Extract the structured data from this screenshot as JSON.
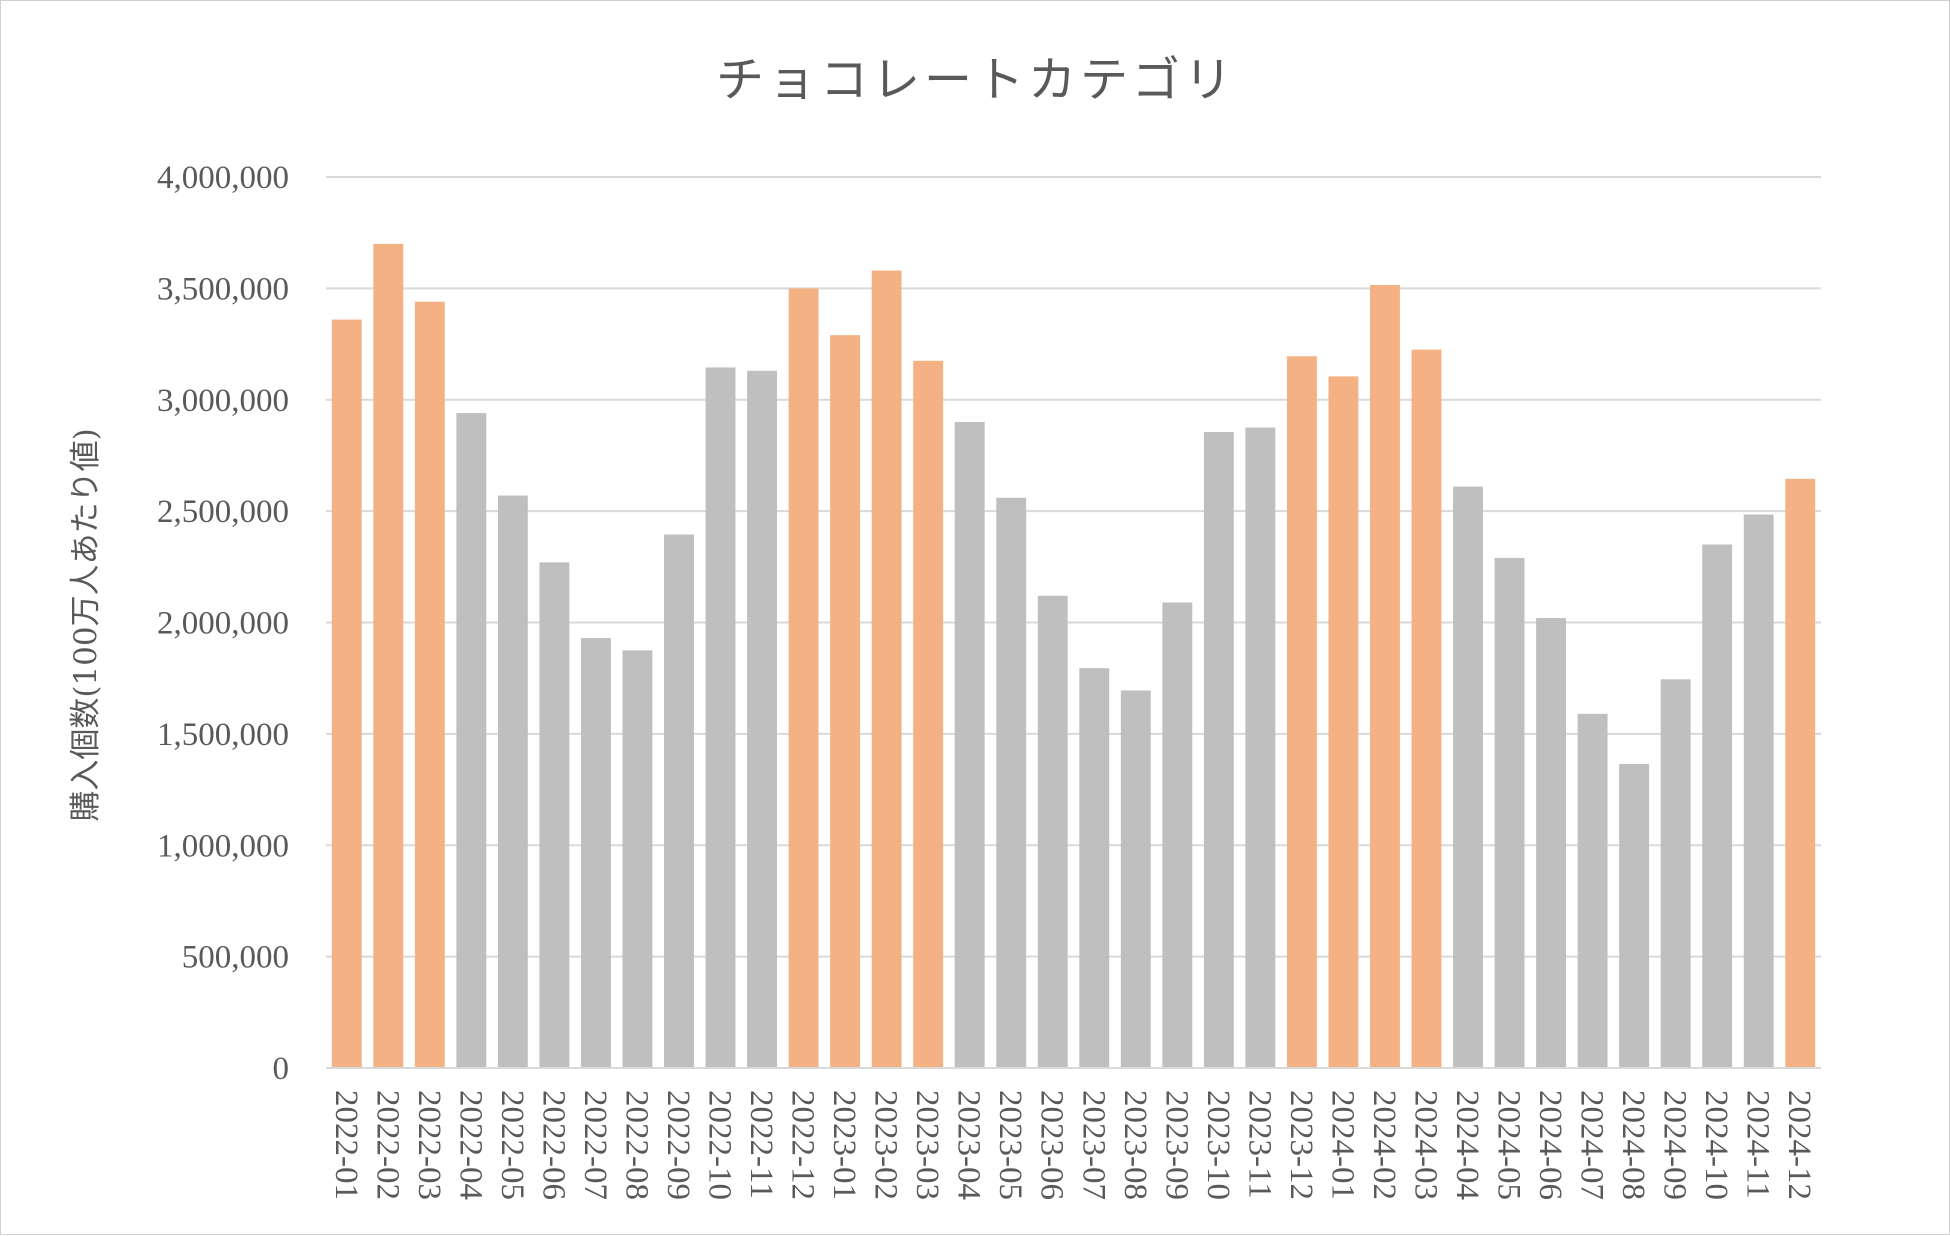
{
  "chart_data": {
    "type": "bar",
    "title": "チョコレートカテゴリ",
    "xlabel": "",
    "ylabel": "購入個数(100万人あたり値)",
    "ylim": [
      0,
      4000000
    ],
    "yticks": [
      0,
      500000,
      1000000,
      1500000,
      2000000,
      2500000,
      3000000,
      3500000,
      4000000
    ],
    "ytick_labels": [
      "0",
      "500,000",
      "1,000,000",
      "1,500,000",
      "2,000,000",
      "2,500,000",
      "3,000,000",
      "3,500,000",
      "4,000,000"
    ],
    "grid": true,
    "legend": "none",
    "categories": [
      "2022-01",
      "2022-02",
      "2022-03",
      "2022-04",
      "2022-05",
      "2022-06",
      "2022-07",
      "2022-08",
      "2022-09",
      "2022-10",
      "2022-11",
      "2022-12",
      "2023-01",
      "2023-02",
      "2023-03",
      "2023-04",
      "2023-05",
      "2023-06",
      "2023-07",
      "2023-08",
      "2023-09",
      "2023-10",
      "2023-11",
      "2023-12",
      "2024-01",
      "2024-02",
      "2024-03",
      "2024-04",
      "2024-05",
      "2024-06",
      "2024-07",
      "2024-08",
      "2024-09",
      "2024-10",
      "2024-11",
      "2024-12"
    ],
    "values": [
      3360000,
      3700000,
      3440000,
      2940000,
      2570000,
      2270000,
      1930000,
      1875000,
      2395000,
      3145000,
      3130000,
      3500000,
      3290000,
      3580000,
      3175000,
      2900000,
      2560000,
      2120000,
      1795000,
      1695000,
      2090000,
      2855000,
      2875000,
      3195000,
      3105000,
      3515000,
      3225000,
      2610000,
      2290000,
      2020000,
      1590000,
      1365000,
      1745000,
      2350000,
      2485000,
      2645000
    ],
    "highlight_months": [
      "12",
      "01",
      "02",
      "03"
    ],
    "colors": {
      "highlight": "#F4B183",
      "normal": "#BFBFBF",
      "text": "#595959",
      "grid": "#D9D9D9"
    }
  }
}
